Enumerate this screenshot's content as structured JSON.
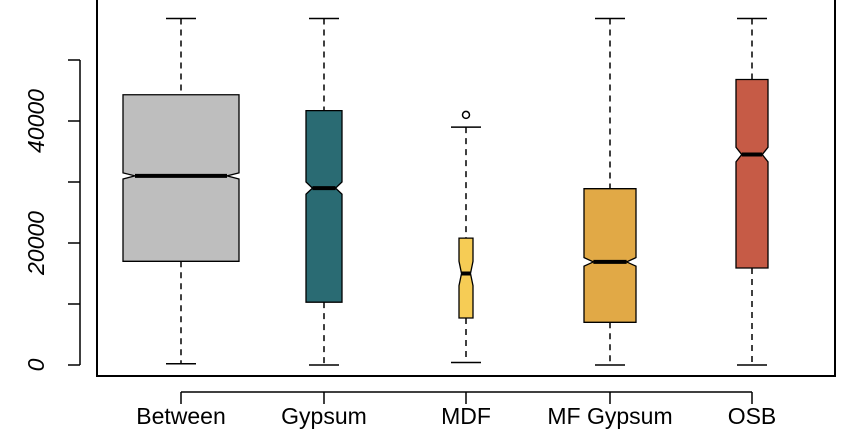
{
  "chart_data": {
    "type": "boxplot",
    "title": "",
    "xlabel": "",
    "ylabel": "",
    "ylim": [
      -2000,
      58000
    ],
    "y_ticks": [
      0,
      20000,
      40000
    ],
    "y_tick_labels": [
      "0",
      "20000",
      "40000"
    ],
    "notched": true,
    "categories": [
      "Between",
      "Gypsum",
      "MDF",
      "MF Gypsum",
      "OSB"
    ],
    "boxes": [
      {
        "name": "Between",
        "color": "#BEBEBE",
        "whisker_low": 200,
        "q1": 17000,
        "median": 31000,
        "q3": 44300,
        "whisker_high": 56800,
        "notch_low": 30500,
        "notch_high": 31500,
        "outliers": []
      },
      {
        "name": "Gypsum",
        "color": "#2A6B73",
        "whisker_low": 0,
        "q1": 10300,
        "median": 29000,
        "q3": 41700,
        "whisker_high": 56800,
        "notch_low": 28000,
        "notch_high": 30000,
        "outliers": []
      },
      {
        "name": "MDF",
        "color": "#F6CC55",
        "whisker_low": 400,
        "q1": 7700,
        "median": 15000,
        "q3": 20800,
        "whisker_high": 39000,
        "notch_low": 13000,
        "notch_high": 17000,
        "outliers": [
          41000
        ]
      },
      {
        "name": "MF Gypsum",
        "color": "#E1A946",
        "whisker_low": 0,
        "q1": 7000,
        "median": 16900,
        "q3": 28900,
        "whisker_high": 56800,
        "notch_low": 16200,
        "notch_high": 17600,
        "outliers": []
      },
      {
        "name": "OSB",
        "color": "#C65B46",
        "whisker_low": 0,
        "q1": 15900,
        "median": 34500,
        "q3": 46800,
        "whisker_high": 56800,
        "notch_low": 33300,
        "notch_high": 35700,
        "outliers": []
      }
    ]
  }
}
